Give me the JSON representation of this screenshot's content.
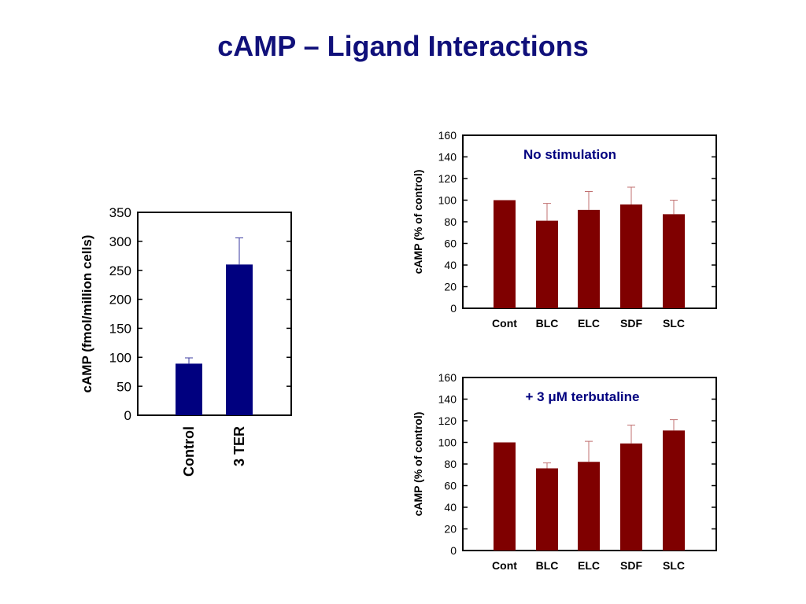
{
  "page": {
    "title": "cAMP – Ligand Interactions"
  },
  "colors": {
    "title": "#10107a",
    "left_bar": "#00007f",
    "left_error": "#3a3aa0",
    "right_bar": "#7f0000",
    "right_error": "#c07070",
    "annotation": "#00007f"
  },
  "chart_data": [
    {
      "type": "bar",
      "title": "",
      "xlabel": "",
      "ylabel": "cAMP (fmol/million cells)",
      "ylim": [
        0,
        350
      ],
      "yticks": [
        0,
        50,
        100,
        150,
        200,
        250,
        300,
        350
      ],
      "categories": [
        "Control",
        "3 TER"
      ],
      "series": [
        {
          "values": [
            89,
            260
          ],
          "errors": [
            10,
            46
          ]
        }
      ],
      "grid": false
    },
    {
      "type": "bar",
      "title": "",
      "annotation": "No stimulation",
      "xlabel": "",
      "ylabel": "cAMP (% of control)",
      "ylim": [
        0,
        160
      ],
      "yticks": [
        0,
        20,
        40,
        60,
        80,
        100,
        120,
        140,
        160
      ],
      "categories": [
        "Cont",
        "BLC",
        "ELC",
        "SDF",
        "SLC"
      ],
      "series": [
        {
          "values": [
            100,
            81,
            91,
            96,
            87
          ],
          "errors": [
            0,
            16,
            17,
            16,
            13
          ]
        }
      ],
      "grid": false
    },
    {
      "type": "bar",
      "title": "",
      "annotation": "+ 3 μM terbutaline",
      "xlabel": "",
      "ylabel": "cAMP (% of control)",
      "ylim": [
        0,
        160
      ],
      "yticks": [
        0,
        20,
        40,
        60,
        80,
        100,
        120,
        140,
        160
      ],
      "categories": [
        "Cont",
        "BLC",
        "ELC",
        "SDF",
        "SLC"
      ],
      "series": [
        {
          "values": [
            100,
            76,
            82,
            99,
            111
          ],
          "errors": [
            0,
            5,
            19,
            17,
            10
          ]
        }
      ],
      "grid": false
    }
  ]
}
